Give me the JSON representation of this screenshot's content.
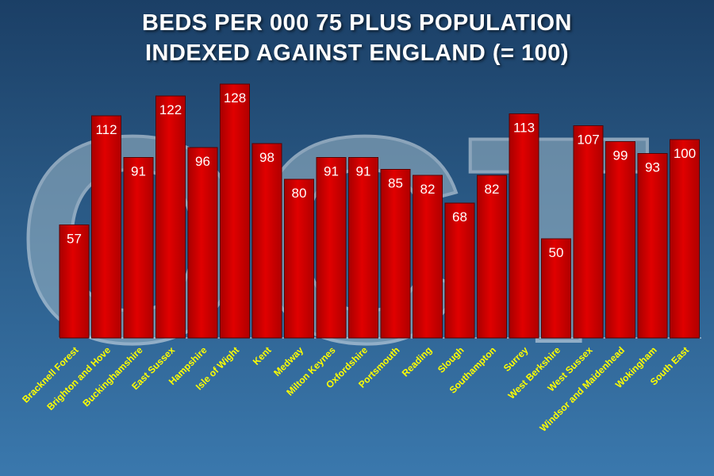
{
  "chart_data": {
    "type": "bar",
    "title_line1": "BEDS PER 000 75 PLUS POPULATION",
    "title_line2": "INDEXED AGAINST ENGLAND (= 100)",
    "categories": [
      "Bracknell Forest",
      "Brighton and Hove",
      "Buckinghamshire",
      "East Sussex",
      "Hampshire",
      "Isle of Wight",
      "Kent",
      "Medway",
      "Milton Keynes",
      "Oxfordshire",
      "Portsmouth",
      "Reading",
      "Slough",
      "Southampton",
      "Surrey",
      "West Berkshire",
      "West Sussex",
      "Windsor and Maidenhead",
      "Wokingham",
      "South East"
    ],
    "values": [
      57,
      112,
      91,
      122,
      96,
      128,
      98,
      80,
      91,
      91,
      85,
      82,
      68,
      82,
      113,
      50,
      107,
      99,
      93,
      100
    ],
    "ylim": [
      0,
      130
    ],
    "grid": false,
    "bar_color": "#d40000",
    "label_color": "#ffff00"
  },
  "watermark": "OCT"
}
